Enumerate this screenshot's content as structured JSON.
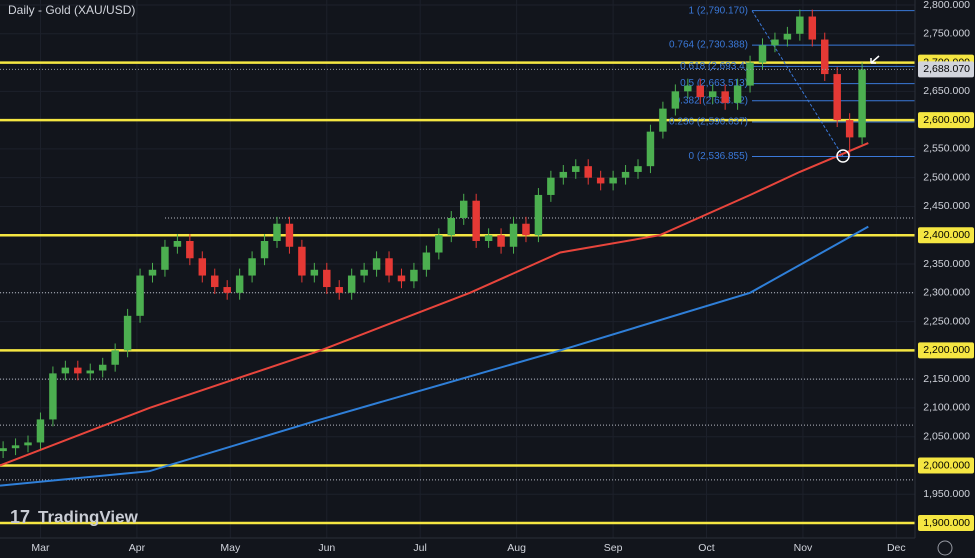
{
  "chart_data": {
    "type": "candlestick",
    "title": "Daily - Gold (XAU/USD)",
    "watermark": "TradingView",
    "xlim": [
      -13,
      281
    ],
    "xticks": [
      {
        "value": 0,
        "label": "Mar"
      },
      {
        "value": 31,
        "label": "Apr"
      },
      {
        "value": 61,
        "label": "May"
      },
      {
        "value": 92,
        "label": "Jun"
      },
      {
        "value": 122,
        "label": "Jul"
      },
      {
        "value": 153,
        "label": "Aug"
      },
      {
        "value": 184,
        "label": "Sep"
      },
      {
        "value": 214,
        "label": "Oct"
      },
      {
        "value": 245,
        "label": "Nov"
      },
      {
        "value": 275,
        "label": "Dec"
      }
    ],
    "ylim": [
      1874,
      2808.7
    ],
    "yticks": [
      {
        "value": 1900,
        "label": "1,900.000"
      },
      {
        "value": 1950,
        "label": "1,950.000"
      },
      {
        "value": 2000,
        "label": "2,000.000"
      },
      {
        "value": 2050,
        "label": "2,050.000"
      },
      {
        "value": 2100,
        "label": "2,100.000"
      },
      {
        "value": 2150,
        "label": "2,150.000"
      },
      {
        "value": 2200,
        "label": "2,200.000"
      },
      {
        "value": 2250,
        "label": "2,250.000"
      },
      {
        "value": 2300,
        "label": "2,300.000"
      },
      {
        "value": 2350,
        "label": "2,350.000"
      },
      {
        "value": 2400,
        "label": "2,400.000"
      },
      {
        "value": 2450,
        "label": "2,450.000"
      },
      {
        "value": 2500,
        "label": "2,500.000"
      },
      {
        "value": 2550,
        "label": "2,550.000"
      },
      {
        "value": 2600,
        "label": "2,600.000"
      },
      {
        "value": 2650,
        "label": "2,650.000"
      },
      {
        "value": 2700,
        "label": "2,700.000"
      },
      {
        "value": 2750,
        "label": "2,750.000"
      },
      {
        "value": 2800,
        "label": "2,800.000"
      }
    ],
    "grid": true,
    "up_color": "#4caf50",
    "down_color": "#e53935",
    "x": [
      -12,
      -8,
      -4,
      0,
      4,
      8,
      12,
      16,
      20,
      24,
      28,
      32,
      36,
      40,
      44,
      48,
      52,
      56,
      60,
      64,
      68,
      72,
      76,
      80,
      84,
      88,
      92,
      96,
      100,
      104,
      108,
      112,
      116,
      120,
      124,
      128,
      132,
      136,
      140,
      144,
      148,
      152,
      156,
      160,
      164,
      168,
      172,
      176,
      180,
      184,
      188,
      192,
      196,
      200,
      204,
      208,
      212,
      216,
      220,
      224,
      228,
      232,
      236,
      240,
      244,
      248,
      252,
      256,
      260,
      264
    ],
    "open": [
      2025,
      2030,
      2035,
      2040,
      2080,
      2160,
      2170,
      2160,
      2165,
      2175,
      2200,
      2260,
      2330,
      2340,
      2380,
      2390,
      2360,
      2330,
      2310,
      2300,
      2330,
      2360,
      2390,
      2420,
      2380,
      2330,
      2340,
      2310,
      2300,
      2330,
      2340,
      2360,
      2330,
      2320,
      2340,
      2370,
      2400,
      2430,
      2460,
      2390,
      2400,
      2380,
      2420,
      2400,
      2470,
      2500,
      2510,
      2520,
      2500,
      2490,
      2500,
      2510,
      2520,
      2580,
      2620,
      2650,
      2660,
      2640,
      2650,
      2630,
      2660,
      2700,
      2730,
      2740,
      2750,
      2780,
      2740,
      2680,
      2600,
      2570
    ],
    "high": [
      2042,
      2047,
      2052,
      2092,
      2172,
      2182,
      2182,
      2177,
      2187,
      2212,
      2272,
      2342,
      2352,
      2392,
      2402,
      2402,
      2372,
      2342,
      2322,
      2342,
      2372,
      2402,
      2432,
      2432,
      2392,
      2352,
      2352,
      2322,
      2342,
      2352,
      2372,
      2372,
      2342,
      2352,
      2382,
      2412,
      2442,
      2472,
      2472,
      2412,
      2412,
      2432,
      2432,
      2482,
      2512,
      2522,
      2532,
      2532,
      2512,
      2512,
      2522,
      2532,
      2592,
      2632,
      2662,
      2672,
      2672,
      2662,
      2662,
      2672,
      2712,
      2742,
      2752,
      2762,
      2792,
      2792,
      2752,
      2692,
      2612,
      2700
    ],
    "low": [
      2013,
      2018,
      2023,
      2028,
      2068,
      2148,
      2148,
      2148,
      2153,
      2163,
      2188,
      2248,
      2318,
      2328,
      2368,
      2348,
      2318,
      2298,
      2288,
      2288,
      2318,
      2348,
      2378,
      2368,
      2318,
      2318,
      2298,
      2288,
      2288,
      2318,
      2328,
      2318,
      2308,
      2308,
      2328,
      2358,
      2388,
      2418,
      2378,
      2378,
      2368,
      2368,
      2388,
      2388,
      2458,
      2488,
      2498,
      2488,
      2478,
      2478,
      2488,
      2498,
      2508,
      2568,
      2608,
      2638,
      2628,
      2628,
      2618,
      2618,
      2648,
      2688,
      2718,
      2728,
      2738,
      2728,
      2668,
      2588,
      2537,
      2558
    ],
    "close": [
      2030,
      2035,
      2040,
      2080,
      2160,
      2170,
      2160,
      2165,
      2175,
      2200,
      2260,
      2330,
      2340,
      2380,
      2390,
      2360,
      2330,
      2310,
      2300,
      2330,
      2360,
      2390,
      2420,
      2380,
      2330,
      2340,
      2310,
      2300,
      2330,
      2340,
      2360,
      2330,
      2320,
      2340,
      2370,
      2400,
      2430,
      2460,
      2390,
      2400,
      2380,
      2420,
      2400,
      2470,
      2500,
      2510,
      2520,
      2500,
      2490,
      2500,
      2510,
      2520,
      2580,
      2620,
      2650,
      2660,
      2640,
      2650,
      2630,
      2660,
      2700,
      2730,
      2740,
      2750,
      2780,
      2740,
      2680,
      2600,
      2570,
      2688.07
    ],
    "last_price": {
      "value": 2688.07,
      "label": "2,688.070"
    },
    "moving_averages": [
      {
        "color": "#e8453c",
        "x": [
          -13,
          35,
          90,
          138,
          167,
          199,
          228,
          244,
          266
        ],
        "values": [
          2000,
          2100,
          2200,
          2300,
          2370,
          2400,
          2470,
          2510,
          2560
        ]
      },
      {
        "color": "#2f7fd8",
        "x": [
          -13,
          35,
          90,
          167,
          228,
          266
        ],
        "values": [
          1965,
          1990,
          2080,
          2200,
          2300,
          2415
        ]
      }
    ],
    "levels": [
      2700,
      2600,
      2400,
      2200,
      2000,
      1900
    ],
    "level_color": "#f5e642",
    "dotted_levels": [
      2430,
      2300,
      2150,
      2070,
      1975
    ],
    "fibonacci": [
      {
        "value": 2790.17,
        "label": "1 (2,790.170)"
      },
      {
        "value": 2730.388,
        "label": "0.764 (2,730.388)"
      },
      {
        "value": 2693.4,
        "label": "0.618 (2,693.4)"
      },
      {
        "value": 2663.513,
        "label": "0.5 (2,663.513)"
      },
      {
        "value": 2633.62,
        "label": "0.382 (2,633.62)"
      },
      {
        "value": 2596.637,
        "label": "0.236 (2,596.637)"
      },
      {
        "value": 2536.855,
        "label": "0 (2,536.855)"
      }
    ]
  }
}
